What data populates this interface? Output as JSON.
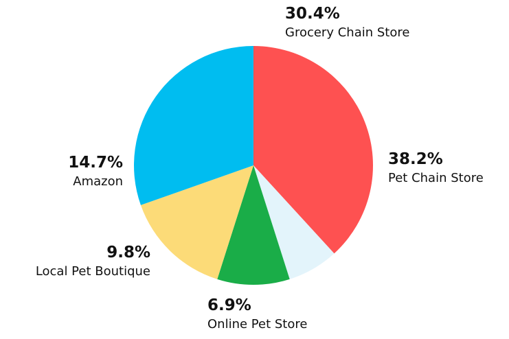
{
  "chart_data": {
    "type": "pie",
    "slices": [
      {
        "label": "Pet Chain Store",
        "value": 38.2,
        "display": "38.2%",
        "color": "#fe5151"
      },
      {
        "label": "Online Pet Store",
        "value": 6.9,
        "display": "6.9%",
        "color": "#e3f4fb"
      },
      {
        "label": "Local Pet Boutique",
        "value": 9.8,
        "display": "9.8%",
        "color": "#1aad48"
      },
      {
        "label": "Amazon",
        "value": 14.7,
        "display": "14.7%",
        "color": "#fcdb78"
      },
      {
        "label": "Grocery Chain Store",
        "value": 30.4,
        "display": "30.4%",
        "color": "#00bdf0"
      }
    ],
    "start": "12 o'clock",
    "direction": "clockwise"
  }
}
